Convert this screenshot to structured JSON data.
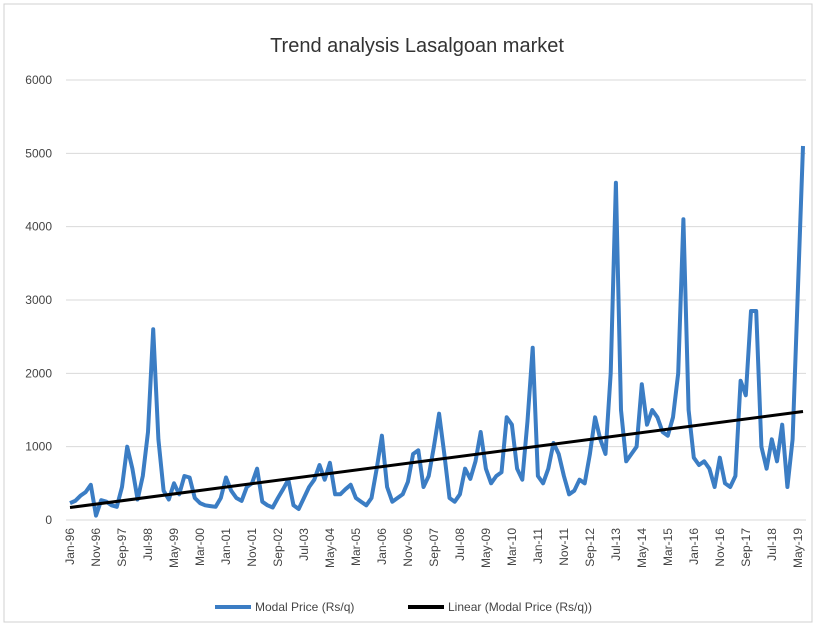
{
  "chart_data": {
    "type": "line",
    "title": "Trend analysis Lasalgoan market",
    "categories": [
      "Jan-96",
      null,
      null,
      null,
      null,
      "Nov-96",
      null,
      null,
      null,
      null,
      "Sep-97",
      null,
      null,
      null,
      null,
      "Jul-98",
      null,
      null,
      null,
      null,
      "May-99",
      null,
      null,
      null,
      null,
      "Mar-00",
      null,
      null,
      null,
      null,
      "Jan-01",
      null,
      null,
      null,
      null,
      "Nov-01",
      null,
      null,
      null,
      null,
      "Sep-02",
      null,
      null,
      null,
      null,
      "Jul-03",
      null,
      null,
      null,
      null,
      "May-04",
      null,
      null,
      null,
      null,
      "Mar-05",
      null,
      null,
      null,
      null,
      "Jan-06",
      null,
      null,
      null,
      null,
      "Nov-06",
      null,
      null,
      null,
      null,
      "Sep-07",
      null,
      null,
      null,
      null,
      "Jul-08",
      null,
      null,
      null,
      null,
      "May-09",
      null,
      null,
      null,
      null,
      "Mar-10",
      null,
      null,
      null,
      null,
      "Jan-11",
      null,
      null,
      null,
      null,
      "Nov-11",
      null,
      null,
      null,
      null,
      "Sep-12",
      null,
      null,
      null,
      null,
      "Jul-13",
      null,
      null,
      null,
      null,
      "May-14",
      null,
      null,
      null,
      null,
      "Mar-15",
      null,
      null,
      null,
      null,
      "Jan-16",
      null,
      null,
      null,
      null,
      "Nov-16",
      null,
      null,
      null,
      null,
      "Sep-17",
      null,
      null,
      null,
      null,
      "Jul-18",
      null,
      null,
      null,
      null,
      "May-19",
      null
    ],
    "series": [
      {
        "name": "Modal Price (Rs/q)",
        "color": "#3b7dc4",
        "values": [
          230,
          260,
          330,
          380,
          480,
          60,
          270,
          250,
          200,
          180,
          450,
          1000,
          700,
          280,
          600,
          1200,
          2600,
          1100,
          400,
          280,
          500,
          350,
          600,
          580,
          300,
          230,
          200,
          190,
          180,
          300,
          580,
          400,
          300,
          260,
          450,
          500,
          700,
          250,
          200,
          170,
          300,
          420,
          550,
          200,
          150,
          300,
          450,
          550,
          750,
          550,
          780,
          350,
          350,
          420,
          480,
          300,
          250,
          200,
          300,
          700,
          1150,
          450,
          250,
          300,
          350,
          520,
          900,
          950,
          450,
          600,
          1000,
          1450,
          900,
          300,
          250,
          350,
          700,
          560,
          800,
          1200,
          700,
          500,
          600,
          650,
          1400,
          1300,
          700,
          550,
          1350,
          2350,
          600,
          500,
          700,
          1050,
          900,
          600,
          350,
          400,
          550,
          500,
          900,
          1400,
          1100,
          900,
          2000,
          4600,
          1500,
          800,
          900,
          1000,
          1850,
          1300,
          1500,
          1400,
          1200,
          1150,
          1400,
          2000,
          4100,
          1500,
          850,
          750,
          800,
          700,
          450,
          850,
          500,
          450,
          600,
          1900,
          1700,
          2850,
          2850,
          1000,
          700,
          1100,
          800,
          1300,
          450,
          1100,
          3100,
          5100
        ]
      }
    ],
    "trendline": {
      "name": "Linear (Modal Price (Rs/q))",
      "color": "#000000",
      "start": 170,
      "end": 1480
    },
    "ylim": [
      0,
      6000
    ],
    "yticks": [
      0,
      1000,
      2000,
      3000,
      4000,
      5000,
      6000
    ],
    "grid": true,
    "legend": "bottom"
  }
}
